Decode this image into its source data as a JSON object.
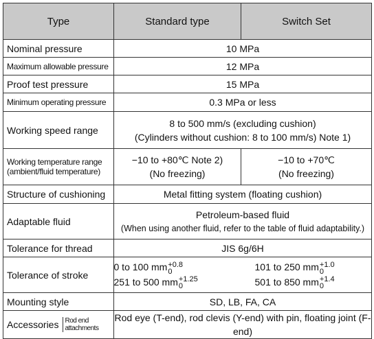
{
  "table": {
    "header": [
      "Type",
      "Standard type",
      "Switch Set"
    ],
    "rows": [
      {
        "label": "Nominal pressure",
        "value": [
          "10 MPa"
        ]
      },
      {
        "label": "Maximum allowable pressure",
        "value": [
          "12 MPa"
        ]
      },
      {
        "label": "Proof test pressure",
        "value": [
          "15 MPa"
        ]
      },
      {
        "label": "Minimum operating pressure",
        "value": [
          "0.3 MPa or less"
        ]
      },
      {
        "label": "Working speed range",
        "value": [
          "8 to 500 mm/s (excluding cushion)",
          "(Cylinders without cushion: 8 to 100 mm/s)  Note 1)"
        ]
      },
      {
        "label": [
          "Working temperature range",
          "(ambient/fluid temperature)"
        ],
        "standard": [
          "−10 to +80℃  Note 2)",
          "(No freezing)"
        ],
        "switch": [
          "−10 to +70℃",
          "(No freezing)"
        ]
      },
      {
        "label": "Structure of cushioning",
        "value": [
          "Metal fitting system (floating cushion)"
        ]
      },
      {
        "label": "Adaptable fluid",
        "value": [
          "Petroleum-based fluid",
          "(When using another fluid, refer to the table of fluid adaptability.)"
        ]
      },
      {
        "label": "Tolerance for thread",
        "value": [
          "JIS  6g/6H"
        ]
      },
      {
        "label": "Tolerance of stroke",
        "items": [
          {
            "text": "0 to 100 mm",
            "upper": "+0.8",
            "lower": "0"
          },
          {
            "text": "101 to 250 mm",
            "upper": "+1.0",
            "lower": "0"
          },
          {
            "text": "251 to 500 mm",
            "upper": "+1.25",
            "lower": "0"
          },
          {
            "text": "501 to 850 mm",
            "upper": "+1.4",
            "lower": "0"
          }
        ]
      },
      {
        "label": "Mounting style",
        "value": [
          "SD, LB, FA, CA"
        ]
      },
      {
        "label": "Accessories",
        "sublabel": "Rod end attachments",
        "value": [
          "Rod eye (T-end), rod clevis (Y-end) with pin, floating joint (F-end)"
        ]
      }
    ]
  }
}
